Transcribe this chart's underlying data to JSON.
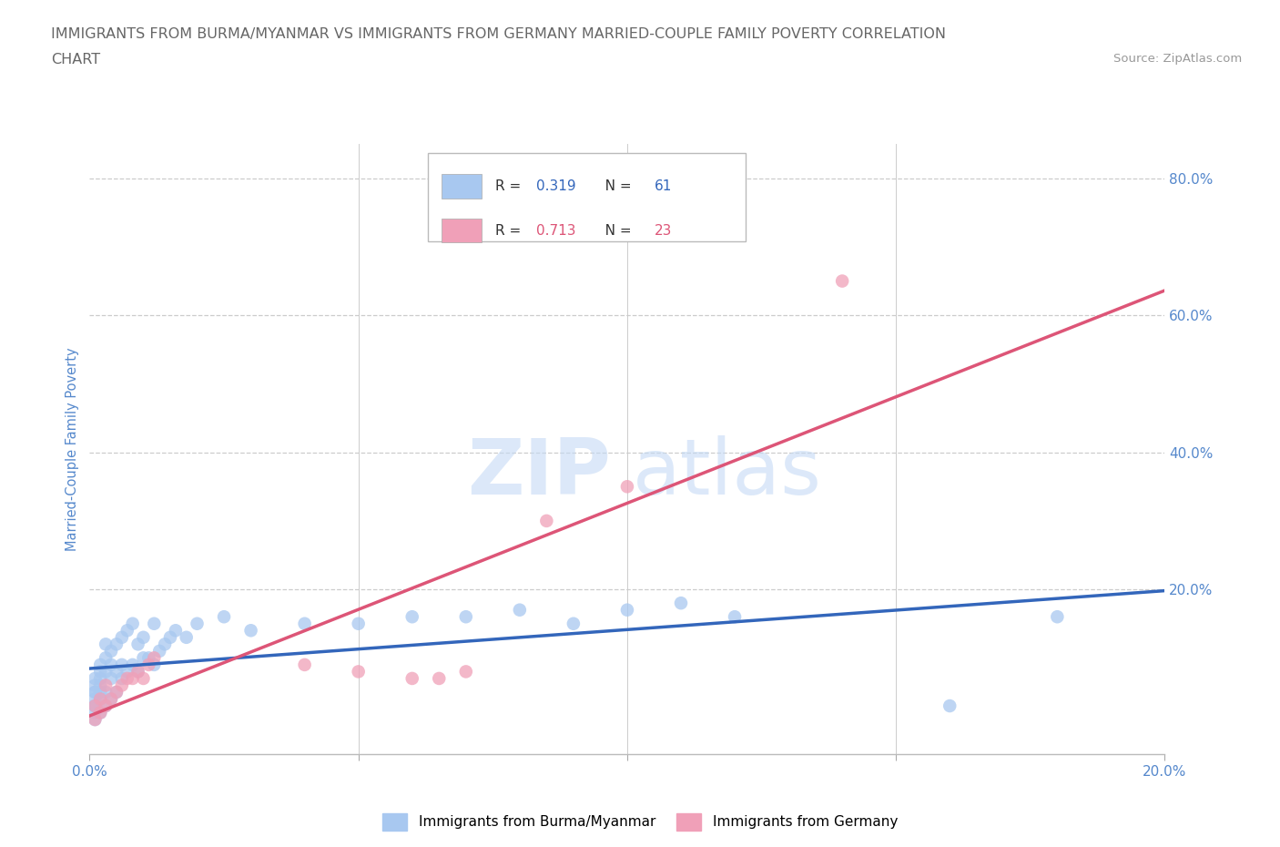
{
  "title_line1": "IMMIGRANTS FROM BURMA/MYANMAR VS IMMIGRANTS FROM GERMANY MARRIED-COUPLE FAMILY POVERTY CORRELATION",
  "title_line2": "CHART",
  "source": "Source: ZipAtlas.com",
  "ylabel": "Married-Couple Family Poverty",
  "xmin": 0.0,
  "xmax": 0.2,
  "ymin": -0.04,
  "ymax": 0.85,
  "burma_R": 0.319,
  "burma_N": 61,
  "germany_R": 0.713,
  "germany_N": 23,
  "burma_color": "#a8c8f0",
  "germany_color": "#f0a0b8",
  "trend_burma_color": "#3366bb",
  "trend_germany_color": "#dd5577",
  "burma_x": [
    0.001,
    0.001,
    0.001,
    0.001,
    0.001,
    0.001,
    0.001,
    0.001,
    0.001,
    0.002,
    0.002,
    0.002,
    0.002,
    0.002,
    0.002,
    0.002,
    0.003,
    0.003,
    0.003,
    0.003,
    0.003,
    0.004,
    0.004,
    0.004,
    0.004,
    0.005,
    0.005,
    0.005,
    0.006,
    0.006,
    0.006,
    0.007,
    0.007,
    0.008,
    0.008,
    0.009,
    0.009,
    0.01,
    0.01,
    0.011,
    0.012,
    0.012,
    0.013,
    0.014,
    0.015,
    0.016,
    0.018,
    0.02,
    0.025,
    0.03,
    0.04,
    0.05,
    0.06,
    0.07,
    0.08,
    0.09,
    0.1,
    0.11,
    0.12,
    0.16,
    0.18
  ],
  "burma_y": [
    0.01,
    0.02,
    0.03,
    0.04,
    0.05,
    0.06,
    0.07,
    0.03,
    0.05,
    0.02,
    0.04,
    0.06,
    0.08,
    0.05,
    0.07,
    0.09,
    0.03,
    0.05,
    0.08,
    0.1,
    0.12,
    0.04,
    0.07,
    0.09,
    0.11,
    0.05,
    0.08,
    0.12,
    0.07,
    0.09,
    0.13,
    0.08,
    0.14,
    0.09,
    0.15,
    0.08,
    0.12,
    0.1,
    0.13,
    0.1,
    0.09,
    0.15,
    0.11,
    0.12,
    0.13,
    0.14,
    0.13,
    0.15,
    0.16,
    0.14,
    0.15,
    0.15,
    0.16,
    0.16,
    0.17,
    0.15,
    0.17,
    0.18,
    0.16,
    0.03,
    0.16
  ],
  "germany_x": [
    0.001,
    0.001,
    0.002,
    0.002,
    0.003,
    0.003,
    0.004,
    0.005,
    0.006,
    0.007,
    0.008,
    0.009,
    0.01,
    0.011,
    0.012,
    0.04,
    0.05,
    0.06,
    0.065,
    0.07,
    0.085,
    0.1,
    0.14
  ],
  "germany_y": [
    0.01,
    0.03,
    0.02,
    0.04,
    0.03,
    0.06,
    0.04,
    0.05,
    0.06,
    0.07,
    0.07,
    0.08,
    0.07,
    0.09,
    0.1,
    0.09,
    0.08,
    0.07,
    0.07,
    0.08,
    0.3,
    0.35,
    0.65
  ],
  "watermark_part1": "ZIP",
  "watermark_part2": "atlas",
  "background_color": "#ffffff",
  "grid_color": "#cccccc",
  "axis_label_color": "#5588cc",
  "tick_color": "#5588cc",
  "title_color": "#666666"
}
